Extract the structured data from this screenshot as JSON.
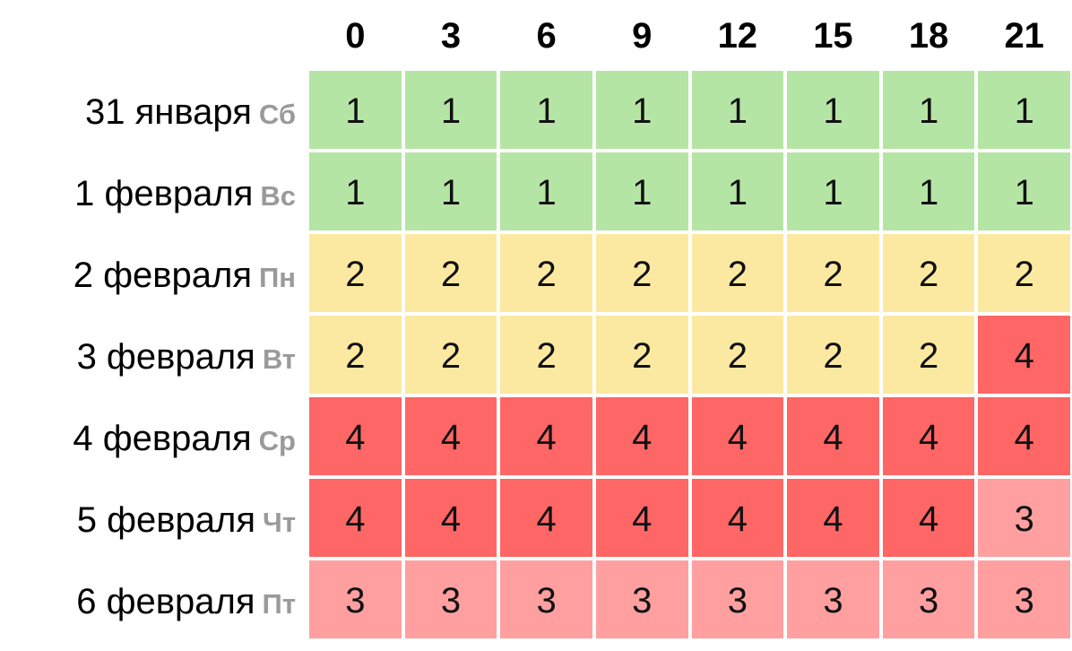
{
  "chart_data": {
    "type": "heatmap",
    "x": [
      "0",
      "3",
      "6",
      "9",
      "12",
      "15",
      "18",
      "21"
    ],
    "rows": [
      {
        "date": "31 января",
        "weekday": "Сб",
        "values": [
          1,
          1,
          1,
          1,
          1,
          1,
          1,
          1
        ]
      },
      {
        "date": "1 февраля",
        "weekday": "Вс",
        "values": [
          1,
          1,
          1,
          1,
          1,
          1,
          1,
          1
        ]
      },
      {
        "date": "2 февраля",
        "weekday": "Пн",
        "values": [
          2,
          2,
          2,
          2,
          2,
          2,
          2,
          2
        ]
      },
      {
        "date": "3 февраля",
        "weekday": "Вт",
        "values": [
          2,
          2,
          2,
          2,
          2,
          2,
          2,
          4
        ]
      },
      {
        "date": "4 февраля",
        "weekday": "Ср",
        "values": [
          4,
          4,
          4,
          4,
          4,
          4,
          4,
          4
        ]
      },
      {
        "date": "5 февраля",
        "weekday": "Чт",
        "values": [
          4,
          4,
          4,
          4,
          4,
          4,
          4,
          3
        ]
      },
      {
        "date": "6 февраля",
        "weekday": "Пт",
        "values": [
          3,
          3,
          3,
          3,
          3,
          3,
          3,
          3
        ]
      }
    ],
    "colors": {
      "1": "#b5e5a5",
      "2": "#fce9a1",
      "3": "#ff9f9f",
      "4": "#ff6666"
    }
  }
}
